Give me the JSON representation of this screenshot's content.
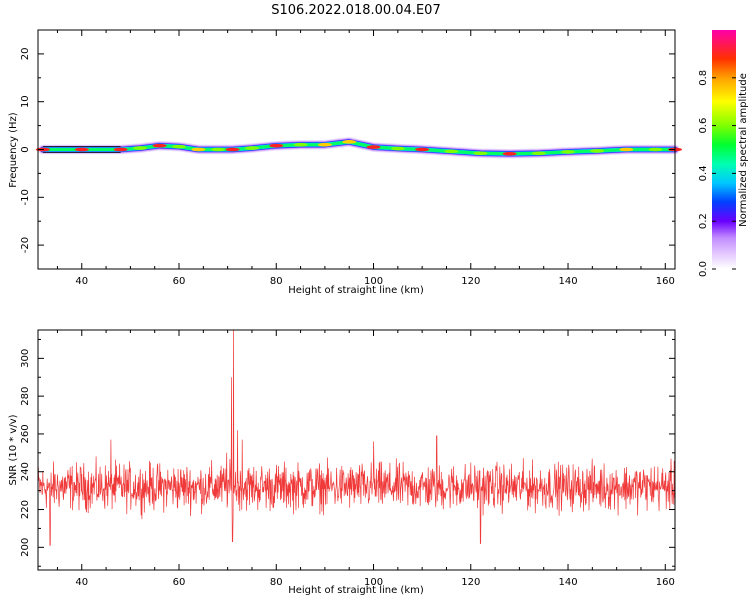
{
  "chart_data": [
    {
      "type": "heatmap",
      "title": "S106.2022.018.00.04.E07",
      "xlabel": "Height of straight line (km)",
      "ylabel": "Frequency (Hz)",
      "xlim": [
        31,
        162
      ],
      "ylim": [
        -25,
        25
      ],
      "xticks": [
        40,
        60,
        80,
        100,
        120,
        140,
        160
      ],
      "yticks": [
        -20,
        -10,
        0,
        10,
        20
      ],
      "grid": false,
      "colorbar": {
        "label": "Normalized spectral amplitude",
        "range": [
          0,
          1
        ],
        "ticks": [
          "0.0",
          "0.2",
          "0.4",
          "0.6",
          "0.8"
        ]
      },
      "ridge": [
        {
          "x": 32,
          "y": 0.0,
          "amp": 1.0
        },
        {
          "x": 40,
          "y": 0.0,
          "amp": 1.0
        },
        {
          "x": 48,
          "y": 0.0,
          "amp": 0.9
        },
        {
          "x": 52,
          "y": 0.3,
          "amp": 0.7
        },
        {
          "x": 56,
          "y": 0.8,
          "amp": 0.95
        },
        {
          "x": 60,
          "y": 0.6,
          "amp": 0.7
        },
        {
          "x": 64,
          "y": 0.0,
          "amp": 0.85
        },
        {
          "x": 68,
          "y": 0.0,
          "amp": 0.6
        },
        {
          "x": 71,
          "y": 0.0,
          "amp": 0.95
        },
        {
          "x": 75,
          "y": 0.3,
          "amp": 0.6
        },
        {
          "x": 80,
          "y": 0.8,
          "amp": 0.95
        },
        {
          "x": 85,
          "y": 1.0,
          "amp": 0.7
        },
        {
          "x": 90,
          "y": 1.0,
          "amp": 0.85
        },
        {
          "x": 95,
          "y": 1.6,
          "amp": 0.75
        },
        {
          "x": 100,
          "y": 0.5,
          "amp": 0.9
        },
        {
          "x": 105,
          "y": 0.2,
          "amp": 0.6
        },
        {
          "x": 110,
          "y": 0.0,
          "amp": 0.9
        },
        {
          "x": 116,
          "y": -0.4,
          "amp": 0.55
        },
        {
          "x": 122,
          "y": -0.8,
          "amp": 0.7
        },
        {
          "x": 128,
          "y": -0.9,
          "amp": 0.9
        },
        {
          "x": 134,
          "y": -0.8,
          "amp": 0.55
        },
        {
          "x": 140,
          "y": -0.5,
          "amp": 0.7
        },
        {
          "x": 146,
          "y": -0.3,
          "amp": 0.6
        },
        {
          "x": 152,
          "y": 0.0,
          "amp": 0.8
        },
        {
          "x": 158,
          "y": 0.0,
          "amp": 0.7
        },
        {
          "x": 162,
          "y": 0.0,
          "amp": 0.9
        }
      ]
    },
    {
      "type": "line",
      "xlabel": "Height of straight line (km)",
      "ylabel": "SNR (10 * v/v)",
      "xlim": [
        31,
        162
      ],
      "ylim": [
        188,
        315
      ],
      "xticks": [
        40,
        60,
        80,
        100,
        120,
        140,
        160
      ],
      "yticks": [
        200,
        220,
        240,
        260,
        280,
        300
      ],
      "grid": false,
      "series": [
        {
          "color": "#f03a3a",
          "x_start": 31,
          "x_end": 162,
          "baseline": 232,
          "noise_amplitude": 12,
          "peaks": [
            {
              "x": 71.2,
              "y": 315
            },
            {
              "x": 70.8,
              "y": 290
            },
            {
              "x": 72.0,
              "y": 262
            },
            {
              "x": 73.0,
              "y": 257
            },
            {
              "x": 69.8,
              "y": 250
            },
            {
              "x": 113.0,
              "y": 259
            },
            {
              "x": 46.0,
              "y": 257
            },
            {
              "x": 100.0,
              "y": 256
            },
            {
              "x": 33.5,
              "y": 201
            },
            {
              "x": 122.0,
              "y": 202
            },
            {
              "x": 71.0,
              "y": 203
            }
          ]
        }
      ]
    }
  ]
}
